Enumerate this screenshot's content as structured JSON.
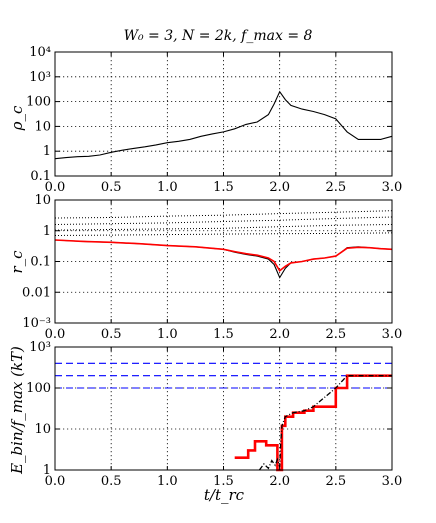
{
  "figure": {
    "title": "W₀ = 3, N = 2k, f_max = 8",
    "xlabel": "t/t_rc"
  },
  "chart_data": [
    {
      "type": "line",
      "ylabel": "ρ_c",
      "yscale": "log",
      "xlim": [
        0,
        3
      ],
      "ylim": [
        0.1,
        10000
      ],
      "grid": true,
      "xticks": [
        0,
        0.5,
        1,
        1.5,
        2,
        2.5,
        3
      ],
      "xtick_labels": [
        "0.0",
        "0.5",
        "1.0",
        "1.5",
        "2.0",
        "2.5",
        "3.0"
      ],
      "yticks": [
        0.1,
        1,
        10,
        100,
        1000,
        10000
      ],
      "ytick_labels": [
        "0.1",
        "1",
        "10",
        "100",
        "10³",
        "10⁴"
      ],
      "series": [
        {
          "color": "#000000",
          "style": "solid",
          "x": [
            0,
            0.1,
            0.2,
            0.3,
            0.4,
            0.5,
            0.6,
            0.7,
            0.8,
            0.9,
            1.0,
            1.1,
            1.2,
            1.3,
            1.4,
            1.5,
            1.6,
            1.7,
            1.8,
            1.9,
            1.95,
            2.0,
            2.05,
            2.1,
            2.2,
            2.3,
            2.4,
            2.5,
            2.6,
            2.7,
            2.8,
            2.9,
            3.0
          ],
          "y": [
            0.5,
            0.55,
            0.6,
            0.62,
            0.7,
            0.9,
            1.1,
            1.3,
            1.5,
            1.8,
            2.2,
            2.5,
            3,
            4,
            5,
            6,
            8,
            12,
            15,
            30,
            80,
            250,
            120,
            70,
            50,
            40,
            30,
            20,
            6,
            3,
            3,
            3,
            4
          ]
        }
      ]
    },
    {
      "type": "line",
      "ylabel": "r_c",
      "yscale": "log",
      "xlim": [
        0,
        3
      ],
      "ylim": [
        0.001,
        10
      ],
      "grid": true,
      "xticks": [
        0,
        0.5,
        1,
        1.5,
        2,
        2.5,
        3
      ],
      "xtick_labels": [
        "0.0",
        "0.5",
        "1.0",
        "1.5",
        "2.0",
        "2.5",
        "3.0"
      ],
      "yticks": [
        0.001,
        0.01,
        0.1,
        1,
        10
      ],
      "ytick_labels": [
        "10⁻³",
        "0.01",
        "0.1",
        "1",
        "10"
      ],
      "series": [
        {
          "color": "#000000",
          "style": "solid",
          "x": [
            0,
            0.25,
            0.5,
            0.75,
            1.0,
            1.25,
            1.5,
            1.6,
            1.7,
            1.8,
            1.9,
            1.95,
            2.0,
            2.05,
            2.1,
            2.2,
            2.3,
            2.4,
            2.5,
            2.55,
            2.6,
            2.7,
            2.8,
            2.9,
            3.0
          ],
          "y": [
            0.5,
            0.45,
            0.42,
            0.38,
            0.33,
            0.3,
            0.25,
            0.2,
            0.17,
            0.15,
            0.12,
            0.08,
            0.03,
            0.06,
            0.09,
            0.1,
            0.12,
            0.13,
            0.15,
            0.2,
            0.28,
            0.3,
            0.28,
            0.26,
            0.25
          ]
        },
        {
          "color": "#ff0000",
          "style": "solid",
          "x": [
            0,
            0.25,
            0.5,
            0.75,
            1.0,
            1.25,
            1.5,
            1.6,
            1.7,
            1.8,
            1.9,
            1.95,
            2.0,
            2.05,
            2.1,
            2.2,
            2.3,
            2.4,
            2.5,
            2.55,
            2.6,
            2.7,
            2.8,
            2.9,
            3.0
          ],
          "y": [
            0.5,
            0.45,
            0.42,
            0.38,
            0.33,
            0.3,
            0.25,
            0.21,
            0.18,
            0.16,
            0.13,
            0.1,
            0.05,
            0.07,
            0.09,
            0.1,
            0.12,
            0.13,
            0.15,
            0.2,
            0.27,
            0.29,
            0.28,
            0.26,
            0.25
          ]
        },
        {
          "color": "#000000",
          "style": "dotted",
          "x": [
            0,
            0.5,
            1.0,
            1.5,
            2.0,
            2.5,
            3.0
          ],
          "y": [
            0.7,
            0.72,
            0.75,
            0.78,
            0.8,
            0.82,
            0.85
          ]
        },
        {
          "color": "#000000",
          "style": "dotted",
          "x": [
            0,
            0.5,
            1.0,
            1.5,
            2.0,
            2.5,
            3.0
          ],
          "y": [
            1.05,
            1.1,
            1.15,
            1.2,
            1.35,
            1.5,
            1.6
          ]
        },
        {
          "color": "#000000",
          "style": "dotted",
          "x": [
            0,
            0.5,
            1.0,
            1.5,
            2.0,
            2.5,
            3.0
          ],
          "y": [
            1.6,
            1.7,
            1.8,
            2.0,
            2.2,
            2.5,
            2.8
          ]
        },
        {
          "color": "#000000",
          "style": "dotted",
          "x": [
            0,
            0.5,
            1.0,
            1.5,
            2.0,
            2.5,
            3.0
          ],
          "y": [
            2.6,
            2.7,
            3.0,
            3.2,
            3.6,
            4.0,
            4.5
          ]
        }
      ]
    },
    {
      "type": "line",
      "ylabel": "E_bin/f_max (kT)",
      "yscale": "log",
      "xlim": [
        0,
        3
      ],
      "ylim": [
        1,
        1000
      ],
      "grid": true,
      "xticks": [
        0,
        0.5,
        1,
        1.5,
        2,
        2.5,
        3
      ],
      "xtick_labels": [
        "0.0",
        "0.5",
        "1.0",
        "1.5",
        "2.0",
        "2.5",
        "3.0"
      ],
      "yticks": [
        1,
        10,
        100,
        1000
      ],
      "ytick_labels": [
        "1",
        "10",
        "100",
        "10³"
      ],
      "hlines": [
        {
          "y": 400,
          "color": "#0000ff",
          "style": "dashed"
        },
        {
          "y": 200,
          "color": "#0000ff",
          "style": "dashed"
        },
        {
          "y": 100,
          "color": "#0000ff",
          "style": "dashed"
        }
      ],
      "series": [
        {
          "color": "#ff0000",
          "style": "step",
          "x": [
            1.6,
            1.72,
            1.72,
            1.78,
            1.78,
            1.88,
            1.88,
            1.98,
            1.98,
            2.02,
            2.02,
            2.05,
            2.05,
            2.12,
            2.12,
            2.22,
            2.22,
            2.3,
            2.3,
            2.5,
            2.5,
            2.6,
            2.6,
            3.0
          ],
          "y": [
            2,
            2,
            3,
            3,
            5,
            5,
            4,
            4,
            1,
            1,
            12,
            12,
            20,
            20,
            25,
            25,
            28,
            28,
            35,
            35,
            100,
            100,
            200,
            200
          ]
        },
        {
          "color": "#000000",
          "style": "dashdot",
          "x": [
            1.82,
            1.86,
            1.9,
            1.93,
            1.96,
            1.98,
            2.0,
            2.01,
            2.02,
            2.05,
            2.12,
            2.22,
            2.3,
            2.5,
            2.6,
            3.0
          ],
          "y": [
            1,
            1.4,
            1.1,
            1.7,
            1.3,
            1.8,
            1.2,
            5,
            12,
            20,
            25,
            28,
            35,
            100,
            200,
            200
          ]
        }
      ]
    }
  ]
}
